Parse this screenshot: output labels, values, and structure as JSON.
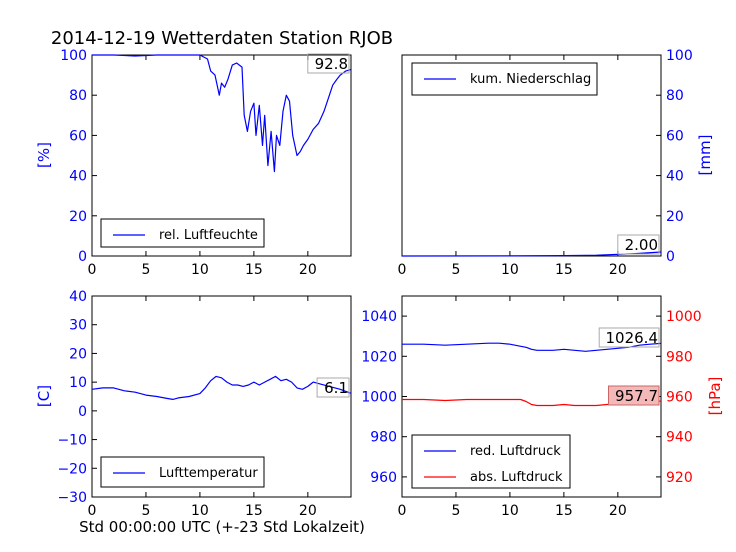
{
  "title": "2014-12-19 Wetterdaten Station RJOB",
  "xlabel": "Std 00:00:00 UTC (+-23 Std Lokalzeit)",
  "chart_data": [
    {
      "type": "line",
      "id": "humidity",
      "ylabel": "[%]",
      "xlim": [
        0,
        24
      ],
      "ylim": [
        0,
        100
      ],
      "xticks": [
        "0",
        "5",
        "10",
        "15",
        "20"
      ],
      "yticks": [
        "0",
        "20",
        "40",
        "60",
        "80",
        "100"
      ],
      "legend": "rel. Luftfeuchte",
      "legend_position": "lower-left",
      "annotation": "92.8",
      "series": [
        {
          "name": "rel. Luftfeuchte",
          "color": "#0000ff",
          "x": [
            0,
            2,
            4,
            6,
            8,
            10,
            10.7,
            11,
            11.4,
            11.8,
            12,
            12.3,
            12.6,
            13,
            13.4,
            13.9,
            14.1,
            14.4,
            14.7,
            15,
            15.2,
            15.5,
            15.8,
            16,
            16.3,
            16.6,
            16.9,
            17.1,
            17.4,
            17.7,
            18,
            18.3,
            18.6,
            19,
            19.3,
            19.6,
            20,
            20.5,
            21,
            21.5,
            22,
            22.3,
            22.7,
            23,
            23.5,
            24
          ],
          "y": [
            100,
            100,
            99.5,
            100,
            100,
            100,
            98,
            92,
            90,
            80,
            86,
            84,
            88,
            95,
            96,
            94,
            70,
            62,
            72,
            76,
            60,
            75,
            55,
            70,
            45,
            62,
            42,
            60,
            55,
            72,
            80,
            77,
            60,
            50,
            52,
            55,
            58,
            63,
            66,
            72,
            80,
            85,
            88,
            90,
            92,
            92.8
          ]
        }
      ]
    },
    {
      "type": "line",
      "id": "precipitation",
      "ylabel": "[mm]",
      "xlim": [
        0,
        24
      ],
      "ylim": [
        0,
        100
      ],
      "xticks": [
        "0",
        "5",
        "10",
        "15",
        "20"
      ],
      "yticks": [
        "0",
        "20",
        "40",
        "60",
        "80",
        "100"
      ],
      "legend": "kum. Niederschlag",
      "legend_position": "upper-left",
      "annotation": "2.00",
      "series": [
        {
          "name": "kum. Niederschlag",
          "color": "#0000ff",
          "x": [
            0,
            10,
            15,
            18,
            20,
            22,
            24
          ],
          "y": [
            0,
            0.05,
            0.2,
            0.4,
            0.8,
            1.3,
            2.0
          ]
        }
      ]
    },
    {
      "type": "line",
      "id": "temperature",
      "ylabel": "[C]",
      "xlim": [
        0,
        24
      ],
      "ylim": [
        -30,
        40
      ],
      "xticks": [
        "0",
        "5",
        "10",
        "15",
        "20"
      ],
      "yticks": [
        "−30",
        "−20",
        "−10",
        "0",
        "10",
        "20",
        "30",
        "40"
      ],
      "legend": "Lufttemperatur",
      "legend_position": "lower-left",
      "annotation": "6.1",
      "series": [
        {
          "name": "Lufttemperatur",
          "color": "#0000ff",
          "x": [
            0,
            1,
            2,
            3,
            4,
            5,
            6,
            7,
            7.5,
            8,
            9,
            10,
            10.5,
            11,
            11.5,
            12,
            12.5,
            13,
            13.5,
            14,
            14.5,
            15,
            15.5,
            16,
            16.5,
            17,
            17.5,
            18,
            18.5,
            19,
            19.5,
            20,
            20.5,
            21,
            22,
            23,
            24
          ],
          "y": [
            7.5,
            8,
            8,
            7,
            6.5,
            5.5,
            5,
            4.3,
            4,
            4.5,
            5,
            6,
            8,
            10.5,
            12,
            11.5,
            10,
            9,
            9,
            8.5,
            9,
            10,
            9,
            10,
            11,
            12,
            10.5,
            11,
            10,
            8,
            7.5,
            8.5,
            10,
            9.5,
            8.5,
            7.5,
            6.1
          ]
        }
      ]
    },
    {
      "type": "line",
      "id": "pressure",
      "ylabel": "[hPa]",
      "xlim": [
        0,
        24
      ],
      "ylim_left": [
        950,
        1050
      ],
      "ylim_right": [
        910,
        1010
      ],
      "xticks": [
        "0",
        "5",
        "10",
        "15",
        "20"
      ],
      "yticks_left": [
        "960",
        "980",
        "1000",
        "1020",
        "1040"
      ],
      "yticks_right": [
        "920",
        "940",
        "960",
        "980",
        "1000"
      ],
      "legend": [
        "red. Luftdruck",
        "abs. Luftdruck"
      ],
      "legend_position": "lower-left",
      "annotation_red": "1026.4",
      "annotation_abs": "957.7",
      "series": [
        {
          "name": "red. Luftdruck",
          "color": "#0000ff",
          "axis": "left",
          "x": [
            0,
            2,
            4,
            6,
            8,
            9,
            10,
            11,
            11.5,
            12,
            12.5,
            13,
            14,
            15,
            16,
            17,
            18,
            19,
            20,
            21,
            22,
            23,
            24
          ],
          "y": [
            1026,
            1026,
            1025.5,
            1026,
            1026.5,
            1026.5,
            1026,
            1025,
            1024.5,
            1023.5,
            1023,
            1023,
            1023,
            1023.5,
            1023,
            1022.5,
            1023,
            1023.5,
            1024,
            1024.5,
            1025.5,
            1026,
            1026.4
          ]
        },
        {
          "name": "abs. Luftdruck",
          "color": "#ff0000",
          "axis": "right",
          "x": [
            0,
            2,
            4,
            6,
            8,
            9,
            10,
            11,
            11.5,
            12,
            12.5,
            13,
            14,
            15,
            16,
            17,
            18,
            19,
            20,
            21,
            22,
            23,
            24
          ],
          "y": [
            958.5,
            958.5,
            958,
            958.5,
            958.5,
            958.5,
            958.5,
            958.5,
            957.5,
            956,
            955.5,
            955.5,
            955.5,
            956,
            955.5,
            955.5,
            955.5,
            956,
            956.5,
            957,
            957.5,
            957.5,
            957.7
          ]
        }
      ]
    }
  ]
}
